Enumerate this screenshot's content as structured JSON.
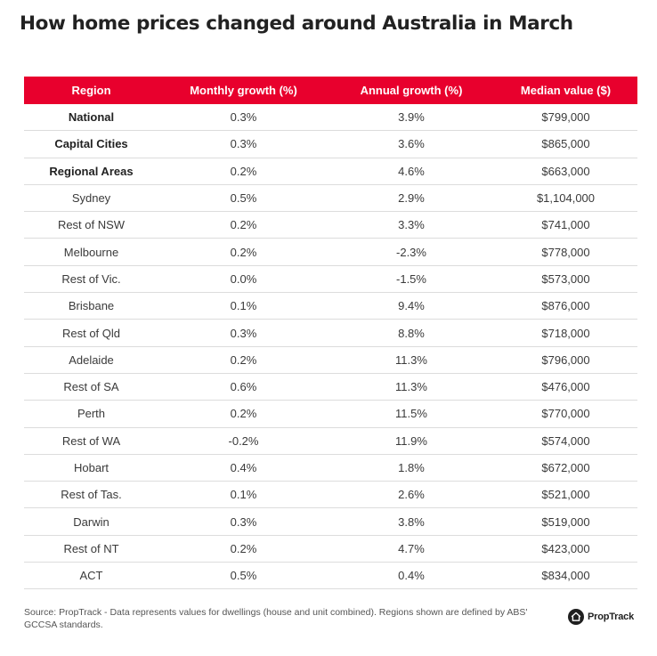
{
  "title": "How home prices changed around Australia in March",
  "table": {
    "headers": [
      "Region",
      "Monthly growth (%)",
      "Annual growth (%)",
      "Median value ($)"
    ],
    "rows": [
      {
        "region": "National",
        "monthly": "0.3%",
        "annual": "3.9%",
        "median": "$799,000",
        "bold": true
      },
      {
        "region": "Capital Cities",
        "monthly": "0.3%",
        "annual": "3.6%",
        "median": "$865,000",
        "bold": true
      },
      {
        "region": "Regional Areas",
        "monthly": "0.2%",
        "annual": "4.6%",
        "median": "$663,000",
        "bold": true
      },
      {
        "region": "Sydney",
        "monthly": "0.5%",
        "annual": "2.9%",
        "median": "$1,104,000",
        "bold": false
      },
      {
        "region": "Rest of NSW",
        "monthly": "0.2%",
        "annual": "3.3%",
        "median": "$741,000",
        "bold": false
      },
      {
        "region": "Melbourne",
        "monthly": "0.2%",
        "annual": "-2.3%",
        "median": "$778,000",
        "bold": false
      },
      {
        "region": "Rest of Vic.",
        "monthly": "0.0%",
        "annual": "-1.5%",
        "median": "$573,000",
        "bold": false
      },
      {
        "region": "Brisbane",
        "monthly": "0.1%",
        "annual": "9.4%",
        "median": "$876,000",
        "bold": false
      },
      {
        "region": "Rest of Qld",
        "monthly": "0.3%",
        "annual": "8.8%",
        "median": "$718,000",
        "bold": false
      },
      {
        "region": "Adelaide",
        "monthly": "0.2%",
        "annual": "11.3%",
        "median": "$796,000",
        "bold": false
      },
      {
        "region": "Rest of SA",
        "monthly": "0.6%",
        "annual": "11.3%",
        "median": "$476,000",
        "bold": false
      },
      {
        "region": "Perth",
        "monthly": "0.2%",
        "annual": "11.5%",
        "median": "$770,000",
        "bold": false
      },
      {
        "region": "Rest of WA",
        "monthly": "-0.2%",
        "annual": "11.9%",
        "median": "$574,000",
        "bold": false
      },
      {
        "region": "Hobart",
        "monthly": "0.4%",
        "annual": "1.8%",
        "median": "$672,000",
        "bold": false
      },
      {
        "region": "Rest of Tas.",
        "monthly": "0.1%",
        "annual": "2.6%",
        "median": "$521,000",
        "bold": false
      },
      {
        "region": "Darwin",
        "monthly": "0.3%",
        "annual": "3.8%",
        "median": "$519,000",
        "bold": false
      },
      {
        "region": "Rest of NT",
        "monthly": "0.2%",
        "annual": "4.7%",
        "median": "$423,000",
        "bold": false
      },
      {
        "region": "ACT",
        "monthly": "0.5%",
        "annual": "0.4%",
        "median": "$834,000",
        "bold": false
      }
    ]
  },
  "footer": {
    "source": "Source: PropTrack - Data represents values for dwellings (house and unit combined). Regions shown are defined by ABS' GCCSA standards.",
    "logo_text": "PropTrack",
    "logo_icon": "house-icon"
  },
  "colors": {
    "header_bg": "#e8002d",
    "header_text": "#ffffff",
    "row_divider": "#dcdcdc"
  }
}
